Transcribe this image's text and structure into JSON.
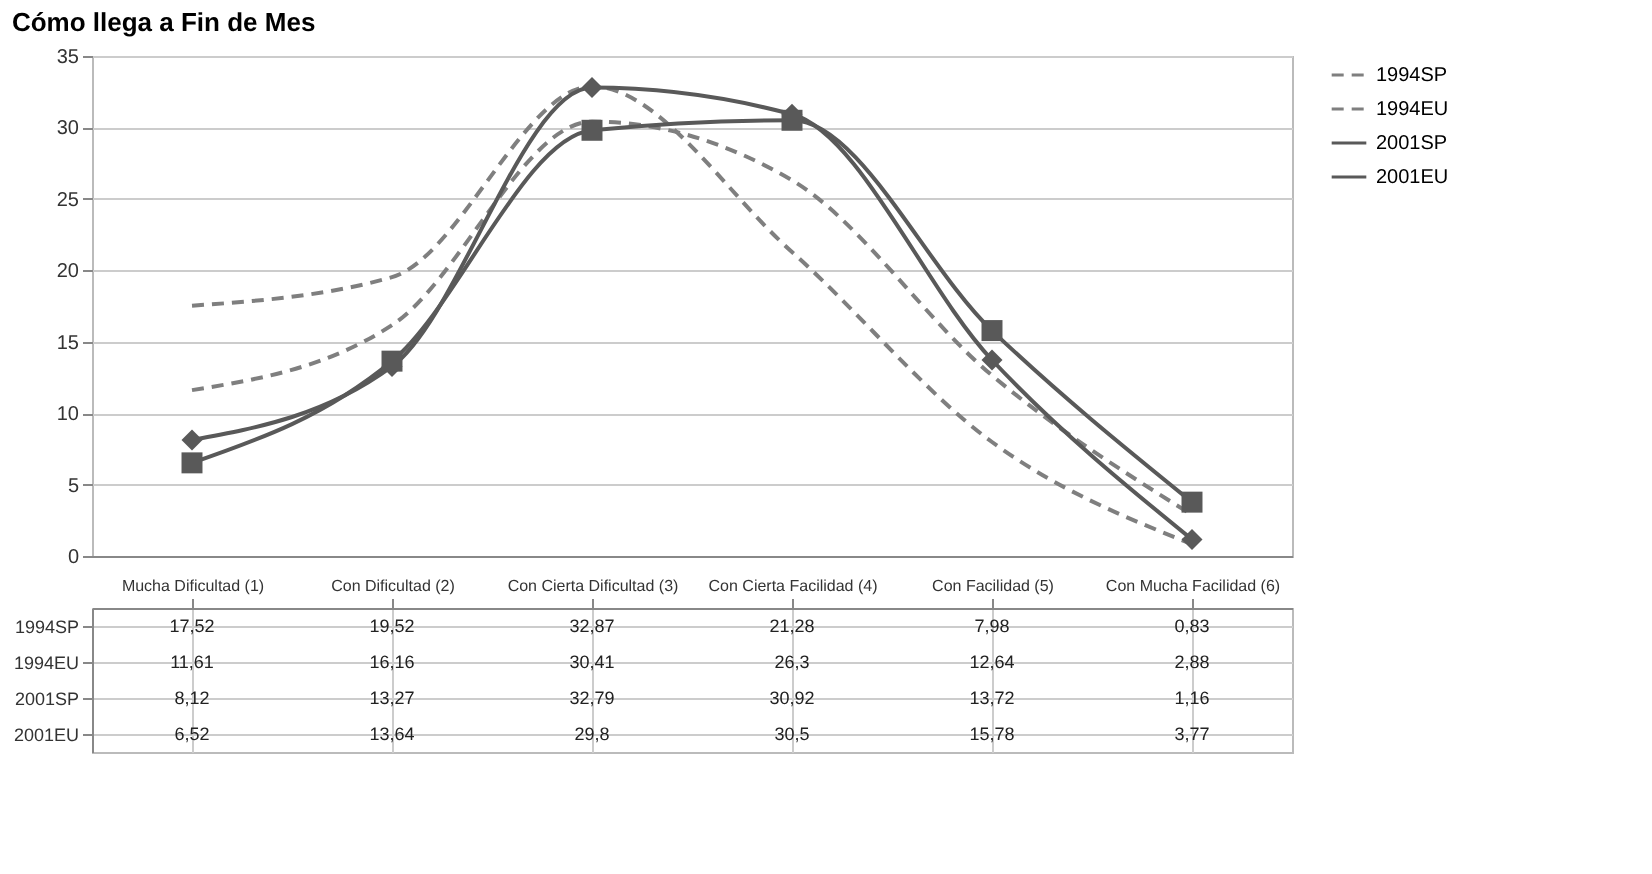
{
  "chart_data": {
    "type": "line",
    "title": "Cómo llega a Fin de Mes",
    "categories": [
      "Mucha Dificultad (1)",
      "Con Dificultad (2)",
      "Con Cierta Dificultad (3)",
      "Con Cierta Facilidad (4)",
      "Con Facilidad (5)",
      "Con Mucha Facilidad (6)"
    ],
    "series": [
      {
        "name": "1994SP",
        "color": "#7f7f7f",
        "line_style": "dashed",
        "marker": "none",
        "values": [
          17.52,
          19.52,
          32.87,
          21.28,
          7.98,
          0.83
        ],
        "value_labels": [
          "17,52",
          "19,52",
          "32,87",
          "21,28",
          "7,98",
          "0,83"
        ]
      },
      {
        "name": "1994EU",
        "color": "#7f7f7f",
        "line_style": "dashed",
        "marker": "none",
        "values": [
          11.61,
          16.16,
          30.41,
          26.3,
          12.64,
          2.88
        ],
        "value_labels": [
          "11,61",
          "16,16",
          "30,41",
          "26,3",
          "12,64",
          "2,88"
        ]
      },
      {
        "name": "2001SP",
        "color": "#595959",
        "line_style": "solid",
        "marker": "diamond",
        "values": [
          8.12,
          13.27,
          32.79,
          30.92,
          13.72,
          1.16
        ],
        "value_labels": [
          "8,12",
          "13,27",
          "32,79",
          "30,92",
          "13,72",
          "1,16"
        ]
      },
      {
        "name": "2001EU",
        "color": "#595959",
        "line_style": "solid",
        "marker": "square",
        "values": [
          6.52,
          13.64,
          29.8,
          30.5,
          15.78,
          3.77
        ],
        "value_labels": [
          "6,52",
          "13,64",
          "29,8",
          "30,5",
          "15,78",
          "3,77"
        ]
      }
    ],
    "ylim": [
      0,
      35
    ],
    "yticks": [
      0,
      5,
      10,
      15,
      20,
      25,
      30,
      35
    ],
    "grid": "y",
    "legend": "right"
  }
}
